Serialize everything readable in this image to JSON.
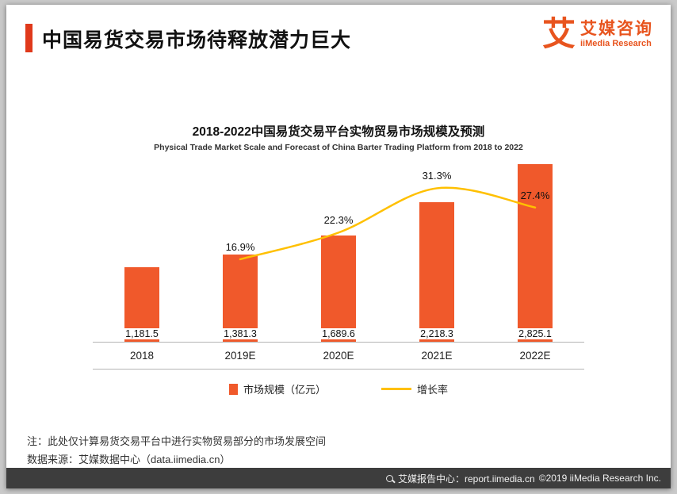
{
  "header": {
    "title": "中国易货交易市场待释放潜力巨大",
    "accent_color": "#E0391B"
  },
  "logo": {
    "mark": "艾",
    "name_cn": "艾媒咨询",
    "name_en": "iiMedia Research",
    "color": "#E8541E"
  },
  "chart_data": {
    "type": "bar+line",
    "title": "2018-2022中国易货交易平台实物贸易市场规模及预测",
    "subtitle": "Physical Trade Market Scale and Forecast of China Barter Trading Platform from 2018 to 2022",
    "categories": [
      "2018",
      "2019E",
      "2020E",
      "2021E",
      "2022E"
    ],
    "bar_series": {
      "name": "市场规模（亿元）",
      "color": "#F0592B",
      "values": [
        1181.5,
        1381.3,
        1689.6,
        2218.3,
        2825.1
      ],
      "labels": [
        "1,181.5",
        "1,381.3",
        "1,689.6",
        "2,218.3",
        "2,825.1"
      ]
    },
    "line_series": {
      "name": "增长率",
      "color": "#FFC000",
      "values": [
        null,
        16.9,
        22.3,
        31.3,
        27.4
      ],
      "labels": [
        "",
        "16.9%",
        "22.3%",
        "31.3%",
        "27.4%"
      ]
    },
    "value_axis_max": 2900,
    "pct_axis_max": 37,
    "legend_position": "bottom",
    "gridlines": false
  },
  "notes": {
    "line1": "注：此处仅计算易货交易平台中进行实物贸易部分的市场发展空间",
    "line2": "数据来源：艾媒数据中心（data.iimedia.cn）"
  },
  "footer": {
    "report_center": "艾媒报告中心：report.iimedia.cn",
    "copyright": "©2019  iiMedia Research Inc."
  }
}
